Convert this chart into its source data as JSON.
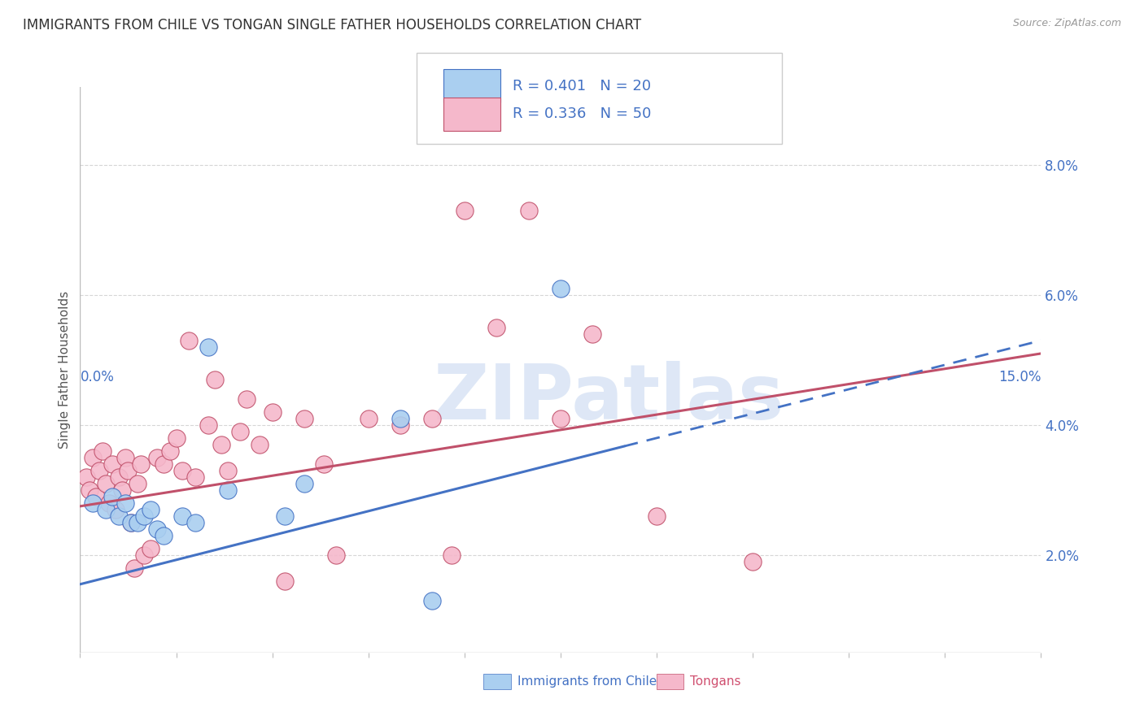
{
  "title": "IMMIGRANTS FROM CHILE VS TONGAN SINGLE FATHER HOUSEHOLDS CORRELATION CHART",
  "source": "Source: ZipAtlas.com",
  "ylabel": "Single Father Households",
  "xlim": [
    0.0,
    15.0
  ],
  "ylim": [
    0.5,
    9.2
  ],
  "yticks": [
    2.0,
    4.0,
    6.0,
    8.0
  ],
  "xticks": [
    0.0,
    1.5,
    3.0,
    4.5,
    6.0,
    7.5,
    9.0,
    10.5,
    12.0,
    13.5,
    15.0
  ],
  "legend_r1": "R = 0.401",
  "legend_n1": "N = 20",
  "legend_r2": "R = 0.336",
  "legend_n2": "N = 50",
  "legend_color1": "#aacff0",
  "legend_color2": "#f5b8cb",
  "axis_color": "#4472c4",
  "tonga_text_color": "#d05070",
  "watermark_text": "ZIPatlas",
  "watermark_color": "#c8d8f0",
  "chile_scatter": [
    [
      0.2,
      2.8
    ],
    [
      0.4,
      2.7
    ],
    [
      0.5,
      2.9
    ],
    [
      0.6,
      2.6
    ],
    [
      0.7,
      2.8
    ],
    [
      0.8,
      2.5
    ],
    [
      0.9,
      2.5
    ],
    [
      1.0,
      2.6
    ],
    [
      1.1,
      2.7
    ],
    [
      1.2,
      2.4
    ],
    [
      1.3,
      2.3
    ],
    [
      1.6,
      2.6
    ],
    [
      1.8,
      2.5
    ],
    [
      2.0,
      5.2
    ],
    [
      2.3,
      3.0
    ],
    [
      3.2,
      2.6
    ],
    [
      3.5,
      3.1
    ],
    [
      5.0,
      4.1
    ],
    [
      7.5,
      6.1
    ],
    [
      5.5,
      1.3
    ]
  ],
  "tonga_scatter": [
    [
      0.1,
      3.2
    ],
    [
      0.15,
      3.0
    ],
    [
      0.2,
      3.5
    ],
    [
      0.25,
      2.9
    ],
    [
      0.3,
      3.3
    ],
    [
      0.35,
      3.6
    ],
    [
      0.4,
      3.1
    ],
    [
      0.45,
      2.8
    ],
    [
      0.5,
      3.4
    ],
    [
      0.55,
      2.7
    ],
    [
      0.6,
      3.2
    ],
    [
      0.65,
      3.0
    ],
    [
      0.7,
      3.5
    ],
    [
      0.75,
      3.3
    ],
    [
      0.8,
      2.5
    ],
    [
      0.85,
      1.8
    ],
    [
      0.9,
      3.1
    ],
    [
      0.95,
      3.4
    ],
    [
      1.0,
      2.0
    ],
    [
      1.1,
      2.1
    ],
    [
      1.2,
      3.5
    ],
    [
      1.3,
      3.4
    ],
    [
      1.4,
      3.6
    ],
    [
      1.5,
      3.8
    ],
    [
      1.6,
      3.3
    ],
    [
      1.7,
      5.3
    ],
    [
      1.8,
      3.2
    ],
    [
      2.0,
      4.0
    ],
    [
      2.1,
      4.7
    ],
    [
      2.2,
      3.7
    ],
    [
      2.3,
      3.3
    ],
    [
      2.5,
      3.9
    ],
    [
      2.6,
      4.4
    ],
    [
      2.8,
      3.7
    ],
    [
      3.0,
      4.2
    ],
    [
      3.2,
      1.6
    ],
    [
      3.5,
      4.1
    ],
    [
      3.8,
      3.4
    ],
    [
      4.0,
      2.0
    ],
    [
      4.5,
      4.1
    ],
    [
      5.0,
      4.0
    ],
    [
      5.5,
      4.1
    ],
    [
      5.8,
      2.0
    ],
    [
      6.0,
      7.3
    ],
    [
      6.5,
      5.5
    ],
    [
      7.0,
      7.3
    ],
    [
      7.5,
      4.1
    ],
    [
      8.0,
      5.4
    ],
    [
      9.0,
      2.6
    ],
    [
      10.5,
      1.9
    ]
  ],
  "chile_line": [
    0.0,
    1.55,
    15.0,
    5.3
  ],
  "tonga_line": [
    0.0,
    2.75,
    15.0,
    5.1
  ],
  "chile_dashed_from": 8.5,
  "scatter_size": 130,
  "chile_color": "#aacff0",
  "tonga_color": "#f5b8cb",
  "chile_line_color": "#4472c4",
  "tonga_line_color": "#c0506a",
  "grid_color": "#cccccc",
  "bg_color": "#ffffff",
  "title_color": "#333333",
  "source_color": "#999999"
}
